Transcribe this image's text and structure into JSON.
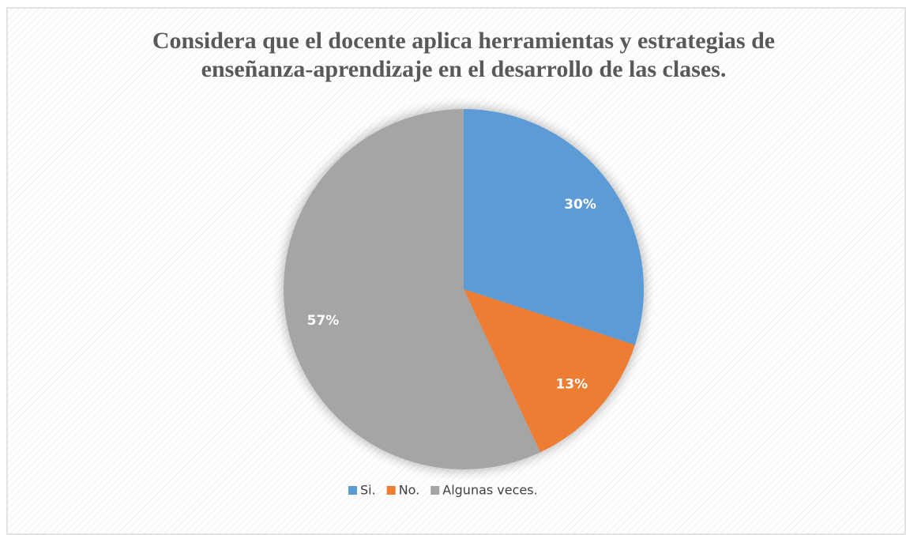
{
  "chart_data": {
    "type": "pie",
    "title": [
      "Considera que el docente aplica herramientas y estrategias de",
      "enseñanza-aprendizaje en el desarrollo de las clases."
    ],
    "categories": [
      "Si.",
      "No.",
      "Algunas veces."
    ],
    "values": [
      30,
      13,
      57
    ],
    "value_labels": [
      "30%",
      "13%",
      "57%"
    ],
    "colors": [
      "#5b9bd5",
      "#ed7d31",
      "#a5a5a5"
    ],
    "legend": "bottom"
  }
}
